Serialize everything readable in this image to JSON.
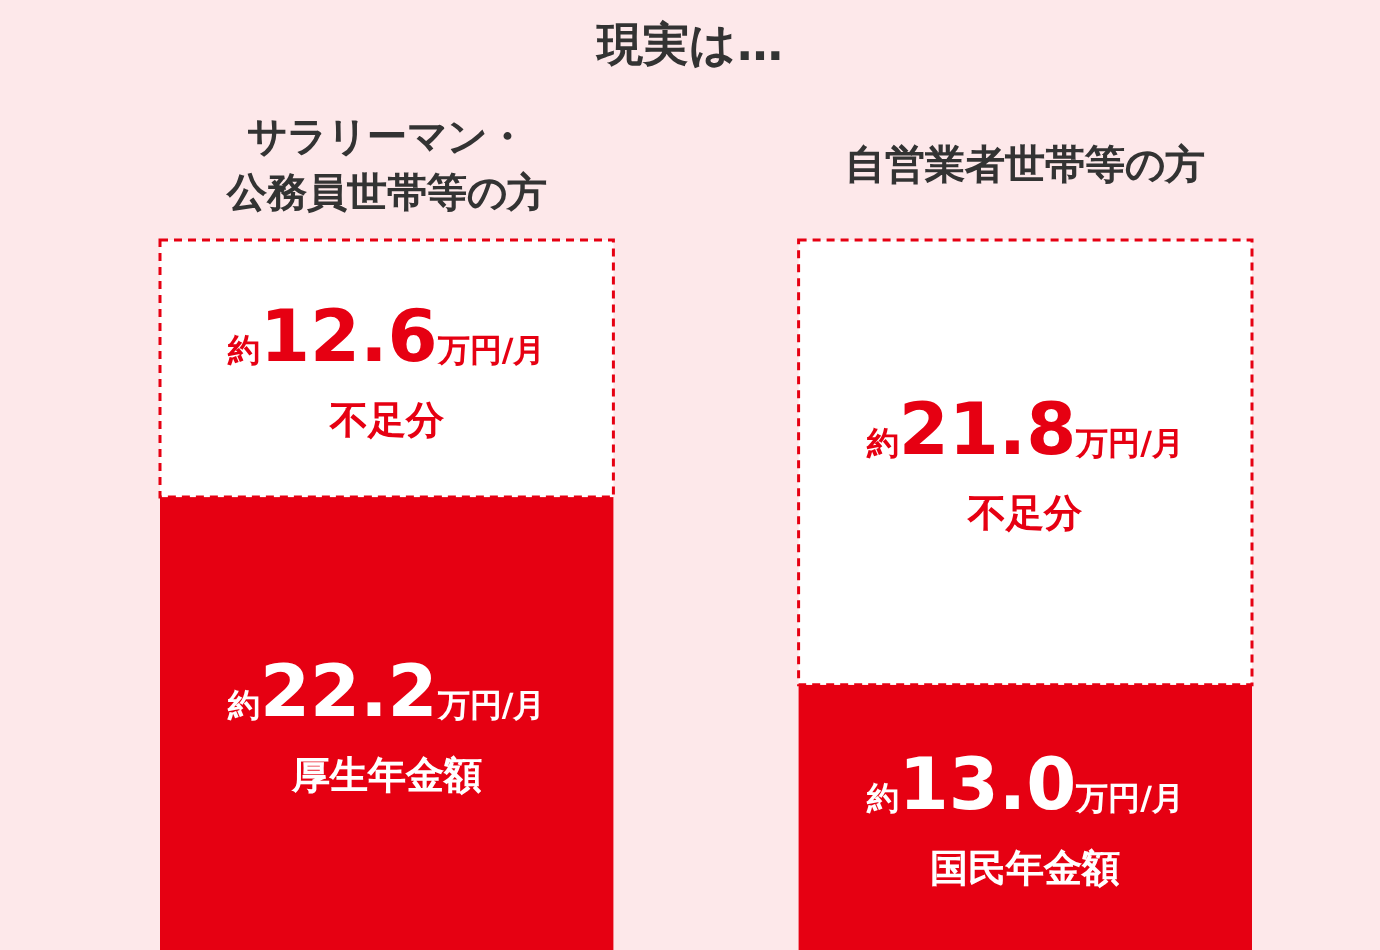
{
  "chart_data": {
    "type": "bar",
    "title": "現実は…",
    "stacked": true,
    "categories": [
      "サラリーマン・公務員世帯等の方",
      "自営業者世帯等の方"
    ],
    "ylim": [
      0,
      34.8
    ],
    "series": [
      {
        "name": "厚生年金額",
        "color": "#e60012",
        "values": [
          22.2,
          null
        ],
        "value_labels": [
          "約22.2万円/月",
          null
        ]
      },
      {
        "name": "国民年金額",
        "color": "#e60012",
        "values": [
          null,
          13.0
        ],
        "value_labels": [
          null,
          "約13.0万円/月"
        ]
      },
      {
        "name": "不足分",
        "color": "#ffffff",
        "values": [
          12.6,
          21.8
        ],
        "value_labels": [
          "約12.6万円/月",
          "約21.8万円/月"
        ]
      }
    ]
  }
}
